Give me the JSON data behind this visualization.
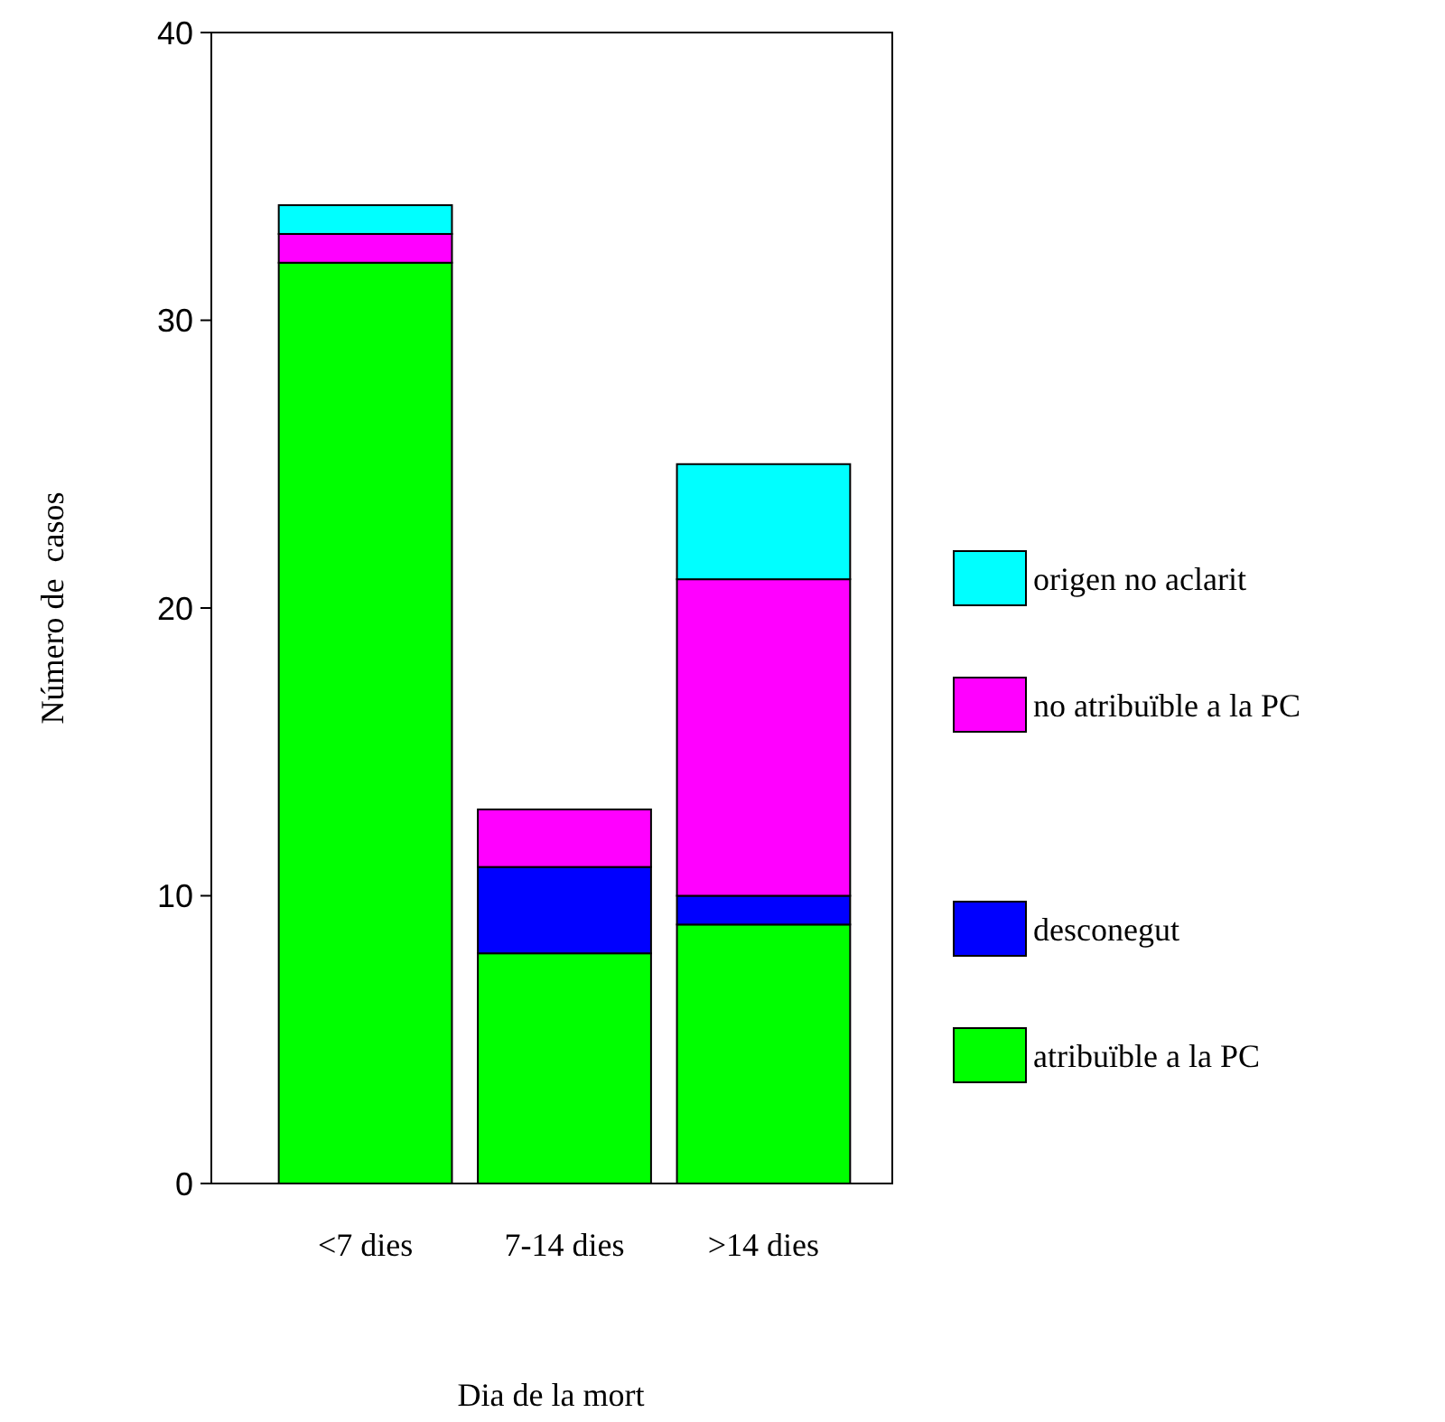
{
  "chart_data": {
    "type": "bar",
    "stacked": true,
    "xlabel": "Dia de la mort",
    "ylabel": "Número de  casos",
    "categories": [
      "<7 dies",
      "7-14 dies",
      ">14 dies"
    ],
    "series": [
      {
        "name": "atribuïble a la PC",
        "color": "#00ff00",
        "values": [
          32,
          8,
          9
        ]
      },
      {
        "name": "desconegut",
        "color": "#0000ff",
        "values": [
          0,
          3,
          1
        ]
      },
      {
        "name": "no atribuïble a la PC",
        "color": "#ff00ff",
        "values": [
          1,
          2,
          11
        ]
      },
      {
        "name": "origen no aclarit",
        "color": "#00ffff",
        "values": [
          1,
          0,
          4
        ]
      }
    ],
    "ylim": [
      0,
      40
    ],
    "yticks": [
      0,
      10,
      20,
      30,
      40
    ],
    "legend": "right",
    "grid": false
  }
}
